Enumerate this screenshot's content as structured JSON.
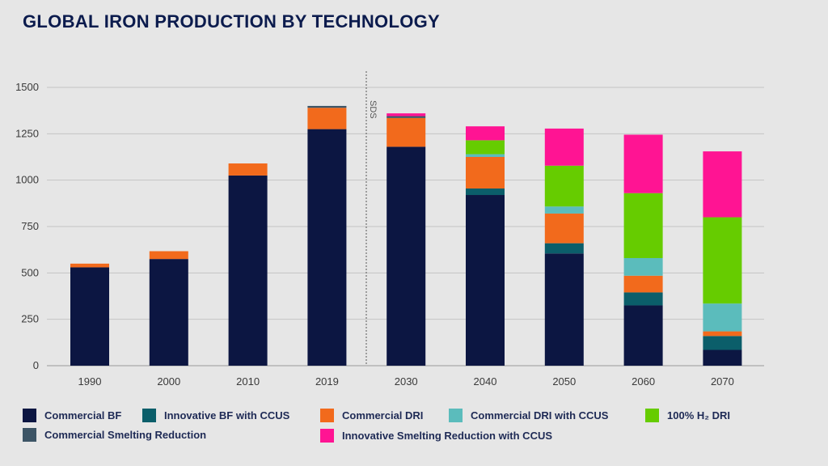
{
  "title": "GLOBAL IRON PRODUCTION BY TECHNOLOGY",
  "chart_data": {
    "type": "bar",
    "stacked": true,
    "categories": [
      "1990",
      "2000",
      "2010",
      "2019",
      "2030",
      "2040",
      "2050",
      "2060",
      "2070"
    ],
    "ylim": [
      0,
      1500
    ],
    "yticks": [
      "0",
      "250",
      "500",
      "750",
      "1000",
      "1250",
      "1500"
    ],
    "grid": "horizontal",
    "annotation": "SDS",
    "series": [
      {
        "name": "Commercial BF",
        "color": "#0c1642",
        "values": [
          530,
          575,
          1025,
          1275,
          1180,
          920,
          605,
          325,
          85
        ]
      },
      {
        "name": "Innovative BF with CCUS",
        "color": "#0b5e6a",
        "values": [
          0,
          0,
          0,
          0,
          0,
          35,
          55,
          70,
          75
        ]
      },
      {
        "name": "Commercial DRI",
        "color": "#f26a1c",
        "values": [
          20,
          42,
          65,
          115,
          155,
          170,
          160,
          90,
          25
        ]
      },
      {
        "name": "Commercial DRI with CCUS",
        "color": "#5bbcbc",
        "values": [
          0,
          0,
          0,
          0,
          0,
          15,
          38,
          95,
          150
        ]
      },
      {
        "name": "100% H₂ DRI",
        "color": "#66cc00",
        "values": [
          0,
          0,
          0,
          0,
          0,
          75,
          220,
          350,
          465
        ]
      },
      {
        "name": "Commercial Smelting Reduction",
        "color": "#3d5566",
        "values": [
          0,
          0,
          0,
          10,
          10,
          0,
          0,
          0,
          0
        ]
      },
      {
        "name": "Innovative Smelting Reduction with CCUS",
        "color": "#ff1493",
        "values": [
          0,
          0,
          0,
          0,
          15,
          75,
          200,
          315,
          355
        ]
      }
    ]
  }
}
